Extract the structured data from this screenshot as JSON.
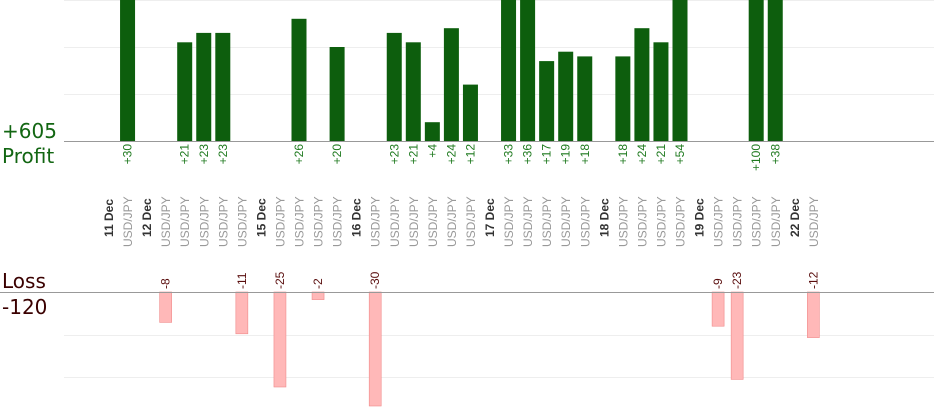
{
  "summary": {
    "profit_total": "+605",
    "profit_label": "Profit",
    "loss_label": "Loss",
    "loss_total": "-120"
  },
  "colors": {
    "profit_bar": "#0d5e0d",
    "profit_text": "#1f7a1f",
    "loss_bar": "#ffb8b8",
    "loss_text": "#5a0e0e",
    "date_text": "#333333",
    "pair_text": "#999999",
    "gridline": "#eeeeee",
    "baseline": "#999999"
  },
  "chart_data": {
    "type": "bar",
    "pair_label": "USD/JPY",
    "columns": [
      {
        "kind": "date",
        "label": "11 Dec"
      },
      {
        "kind": "trade",
        "value": 30,
        "label": "+30"
      },
      {
        "kind": "date",
        "label": "12 Dec"
      },
      {
        "kind": "trade",
        "value": -8,
        "label": "-8"
      },
      {
        "kind": "trade",
        "value": 21,
        "label": "+21"
      },
      {
        "kind": "trade",
        "value": 23,
        "label": "+23"
      },
      {
        "kind": "trade",
        "value": 23,
        "label": "+23"
      },
      {
        "kind": "trade",
        "value": -11,
        "label": "-11"
      },
      {
        "kind": "date",
        "label": "15 Dec"
      },
      {
        "kind": "trade",
        "value": -25,
        "label": "-25"
      },
      {
        "kind": "trade",
        "value": 26,
        "label": "+26"
      },
      {
        "kind": "trade",
        "value": -2,
        "label": "-2"
      },
      {
        "kind": "trade",
        "value": 20,
        "label": "+20"
      },
      {
        "kind": "date",
        "label": "16 Dec"
      },
      {
        "kind": "trade",
        "value": -30,
        "label": "-30"
      },
      {
        "kind": "trade",
        "value": 23,
        "label": "+23"
      },
      {
        "kind": "trade",
        "value": 21,
        "label": "+21"
      },
      {
        "kind": "trade",
        "value": 4,
        "label": "+4"
      },
      {
        "kind": "trade",
        "value": 24,
        "label": "+24"
      },
      {
        "kind": "trade",
        "value": 12,
        "label": "+12"
      },
      {
        "kind": "date",
        "label": "17 Dec"
      },
      {
        "kind": "trade",
        "value": 33,
        "label": "+33"
      },
      {
        "kind": "trade",
        "value": 36,
        "label": "+36"
      },
      {
        "kind": "trade",
        "value": 17,
        "label": "+17"
      },
      {
        "kind": "trade",
        "value": 19,
        "label": "+19"
      },
      {
        "kind": "trade",
        "value": 18,
        "label": "+18"
      },
      {
        "kind": "date",
        "label": "18 Dec"
      },
      {
        "kind": "trade",
        "value": 18,
        "label": "+18"
      },
      {
        "kind": "trade",
        "value": 24,
        "label": "+24"
      },
      {
        "kind": "trade",
        "value": 21,
        "label": "+21"
      },
      {
        "kind": "trade",
        "value": 54,
        "label": "+54"
      },
      {
        "kind": "date",
        "label": "19 Dec"
      },
      {
        "kind": "trade",
        "value": -9,
        "label": "-9"
      },
      {
        "kind": "trade",
        "value": -23,
        "label": "-23"
      },
      {
        "kind": "trade",
        "value": 100,
        "label": "+100"
      },
      {
        "kind": "trade",
        "value": 38,
        "label": "+38"
      },
      {
        "kind": "date",
        "label": "22 Dec"
      },
      {
        "kind": "trade",
        "value": -12,
        "label": "-12"
      }
    ]
  }
}
